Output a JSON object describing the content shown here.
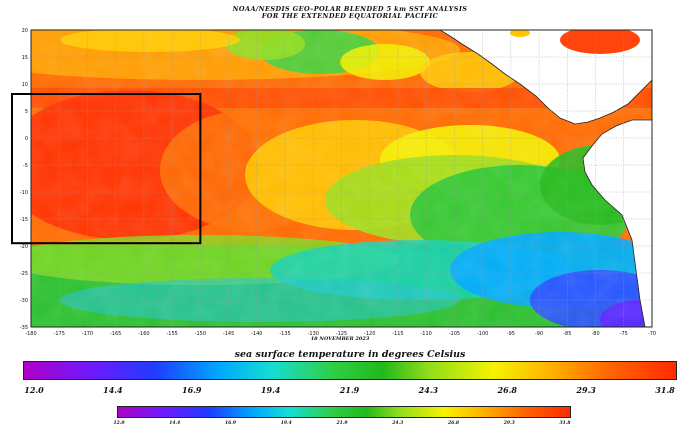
{
  "header": {
    "title_line1": "NOAA/NESDIS GEO–POLAR BLENDED 5 km SST ANALYSIS",
    "title_line2": "FOR THE EXTENDED EQUATORIAL PACIFIC"
  },
  "map": {
    "date": "18 NOVEMBER 2023",
    "lon_ticks": [
      "-180",
      "-175",
      "-170",
      "-165",
      "-160",
      "-155",
      "-150",
      "-145",
      "-140",
      "-135",
      "-130",
      "-125",
      "-120",
      "-115",
      "-110",
      "-105",
      "-100",
      "-95",
      "-90",
      "-85",
      "-80",
      "-75",
      "-70"
    ],
    "lat_ticks": [
      "20",
      "15",
      "10",
      "5",
      "0",
      "-5",
      "-10",
      "-15",
      "-20",
      "-25",
      "-30",
      "-35"
    ],
    "highlight_box": {
      "lon_range": [
        -180,
        -150
      ],
      "lat_range": [
        5,
        -18
      ]
    },
    "colors": {
      "land": "#ffffff",
      "coast": "#222222",
      "grid": "#9a9a9a",
      "box": "#000000"
    }
  },
  "colorbar": {
    "title": "sea surface temperature in degrees Celsius",
    "labels": [
      "12.0",
      "14.4",
      "16.9",
      "19.4",
      "21.9",
      "24.3",
      "26.8",
      "29.3",
      "31.8"
    ]
  }
}
